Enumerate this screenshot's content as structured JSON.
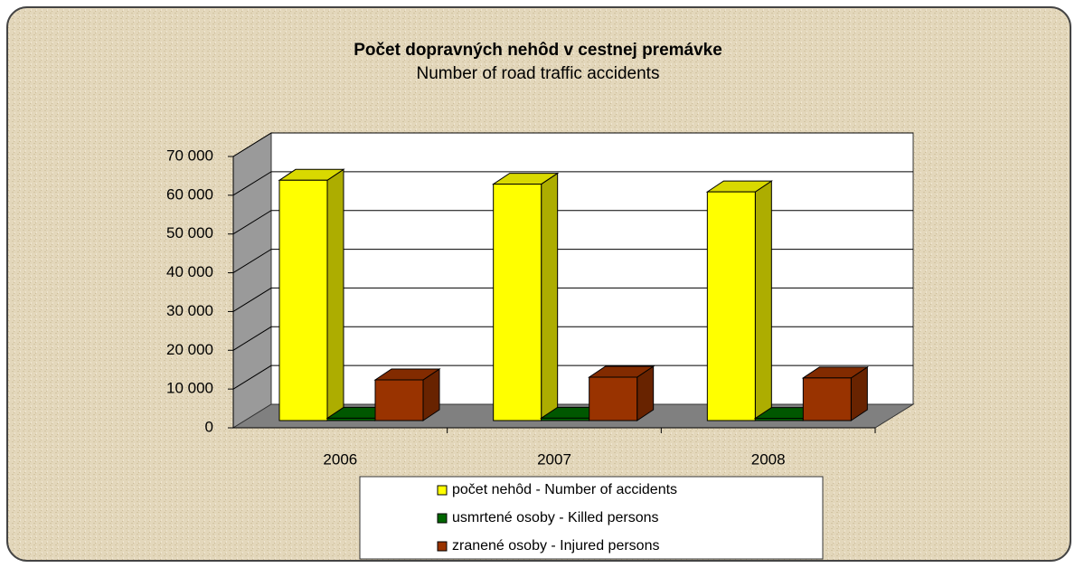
{
  "chart_data": {
    "type": "bar3d",
    "title": "Počet dopravných nehôd v cestnej premávke",
    "subtitle": "Number of road traffic accidents",
    "categories": [
      "2006",
      "2007",
      "2008"
    ],
    "series": [
      {
        "name": "počet nehôd - Number of accidents",
        "color": "#ffff00",
        "values": [
          62000,
          61000,
          59000
        ]
      },
      {
        "name": "usmrtené osoby - Killed persons",
        "color": "#006600",
        "values": [
          600,
          620,
          560
        ]
      },
      {
        "name": "zranené osoby - Injured persons",
        "color": "#993300",
        "values": [
          10500,
          11200,
          11000
        ]
      }
    ],
    "ylim": [
      0,
      70000
    ],
    "yticks": [
      0,
      {
        "value": 10000,
        "label": "10 000"
      },
      {
        "value": 20000,
        "label": "20 000"
      },
      {
        "value": 30000,
        "label": "30 000"
      },
      {
        "value": 40000,
        "label": "40 000"
      },
      {
        "value": 50000,
        "label": "50 000"
      },
      {
        "value": 60000,
        "label": "60 000"
      },
      {
        "value": 70000,
        "label": "70 000"
      }
    ],
    "grid": true
  }
}
